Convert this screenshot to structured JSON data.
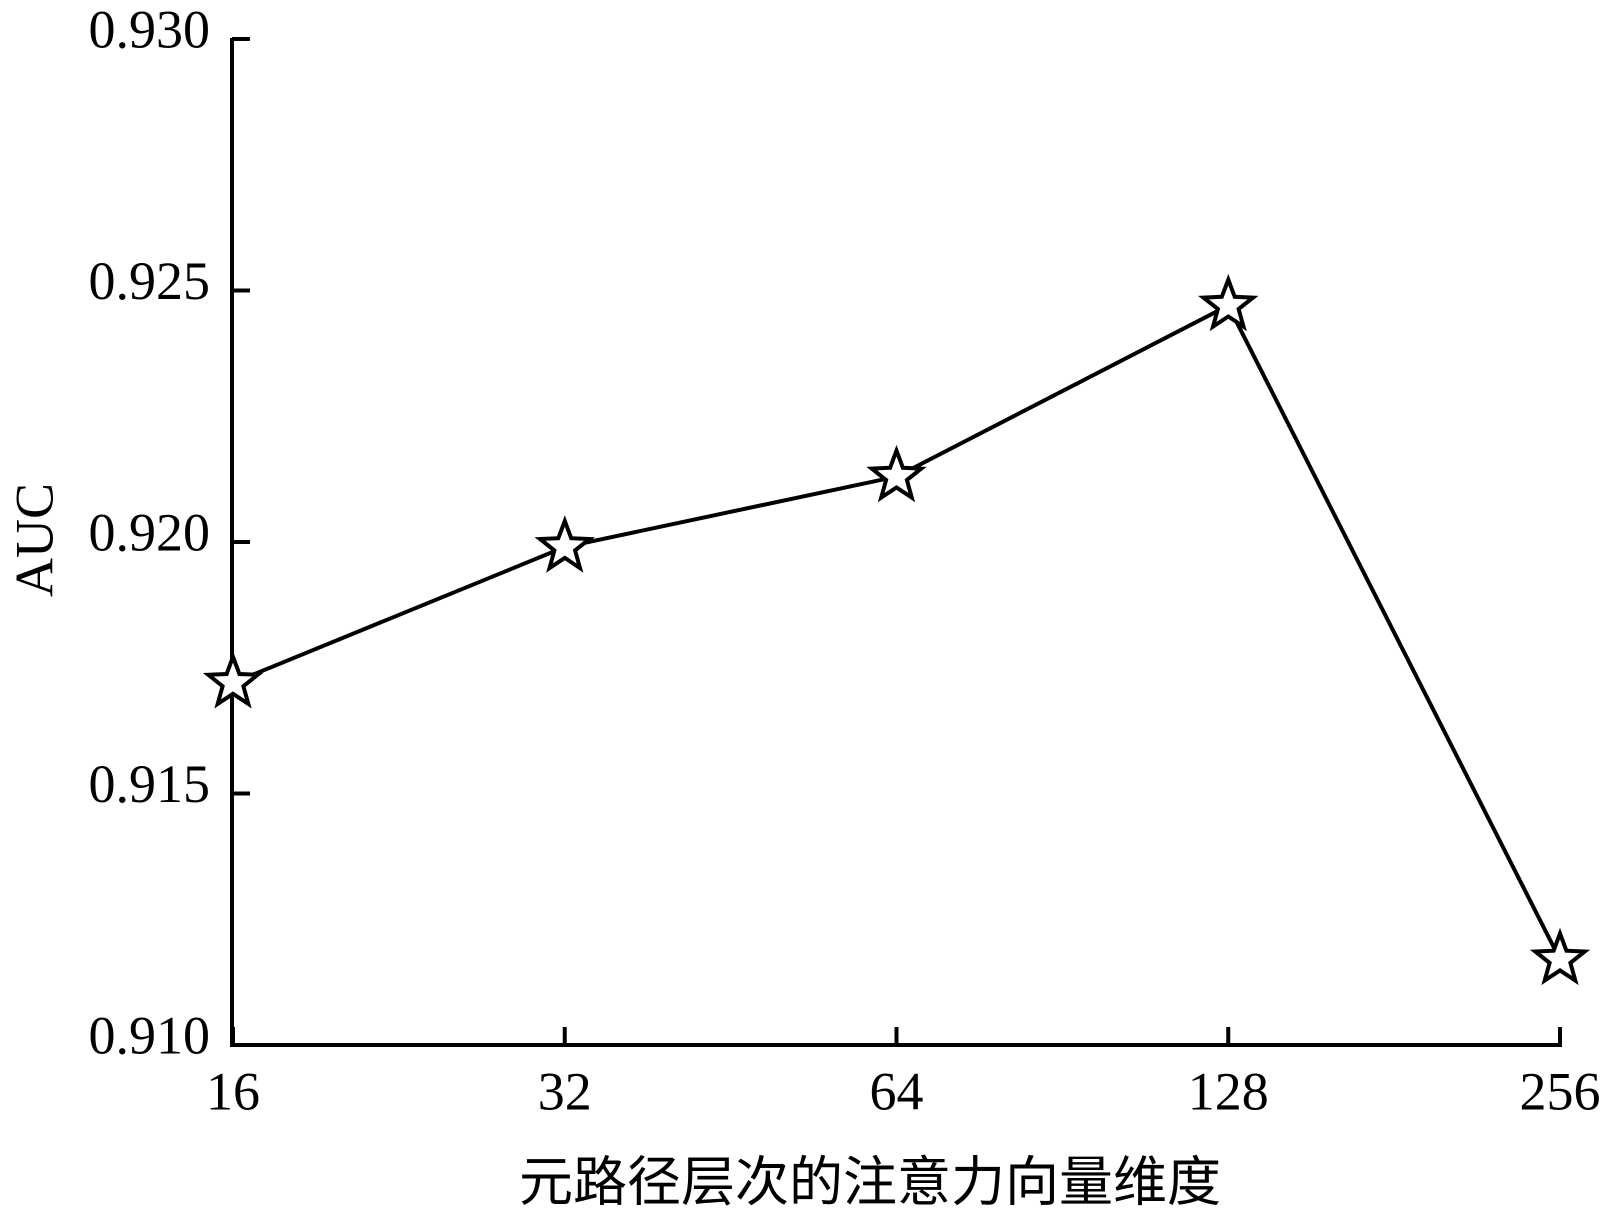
{
  "chart_data": {
    "type": "line",
    "x_label": "元路径层次的注意力向量维度",
    "y_label": "AUC",
    "categories": [
      "16",
      "32",
      "64",
      "128",
      "256"
    ],
    "values": [
      0.9172,
      0.9199,
      0.9213,
      0.9247,
      0.9117
    ],
    "color": "#000000",
    "marker": "star",
    "ylim": [
      0.91,
      0.93
    ],
    "yticks": [
      {
        "value": 0.91,
        "label": "0.910"
      },
      {
        "value": 0.915,
        "label": "0.915"
      },
      {
        "value": 0.92,
        "label": "0.920"
      },
      {
        "value": 0.925,
        "label": "0.925"
      },
      {
        "value": 0.93,
        "label": "0.930"
      }
    ],
    "grid": false
  }
}
